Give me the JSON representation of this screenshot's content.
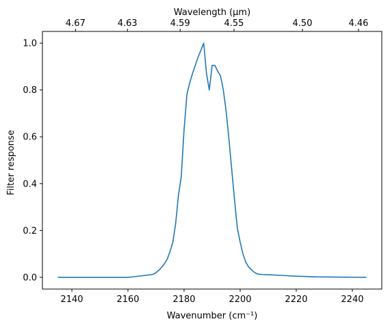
{
  "chart_data": {
    "type": "line",
    "xlabel": "Wavenumber (cm⁻¹)",
    "ylabel": "Filter response",
    "top_xlabel": "Wavelength (μm)",
    "xlim": [
      2129.5,
      2250.5
    ],
    "ylim": [
      -0.05,
      1.05
    ],
    "x_ticks": [
      2140,
      2160,
      2180,
      2200,
      2220,
      2240
    ],
    "y_ticks": [
      0.0,
      0.2,
      0.4,
      0.6,
      0.8,
      1.0
    ],
    "y_tick_labels": [
      "0.0",
      "0.2",
      "0.4",
      "0.6",
      "0.8",
      "1.0"
    ],
    "top_ticks": [
      {
        "label": "4.67",
        "x": 2141.3
      },
      {
        "label": "4.63",
        "x": 2159.8
      },
      {
        "label": "4.59",
        "x": 2178.6
      },
      {
        "label": "4.55",
        "x": 2197.8
      },
      {
        "label": "4.50",
        "x": 2222.2
      },
      {
        "label": "4.46",
        "x": 2242.2
      }
    ],
    "line_color": "#1f77b4",
    "series": [
      {
        "x": [
          2135,
          2150,
          2160,
          2163,
          2166,
          2169,
          2170,
          2171,
          2172,
          2173,
          2174,
          2175,
          2176,
          2177,
          2178,
          2179,
          2180,
          2181,
          2182,
          2183,
          2184,
          2185,
          2186,
          2187,
          2188,
          2189,
          2190,
          2190.5,
          2191,
          2192,
          2193,
          2194,
          2195,
          2196,
          2197,
          2198,
          2199,
          2200,
          2201,
          2202,
          2203,
          2204,
          2205,
          2206,
          2207,
          2208,
          2210,
          2212,
          2215,
          2220,
          2227,
          2235,
          2245
        ],
        "y": [
          0.0,
          0.0,
          0.0,
          0.004,
          0.008,
          0.013,
          0.02,
          0.03,
          0.043,
          0.058,
          0.078,
          0.11,
          0.15,
          0.23,
          0.35,
          0.43,
          0.63,
          0.78,
          0.83,
          0.87,
          0.905,
          0.94,
          0.97,
          1.0,
          0.87,
          0.8,
          0.905,
          0.905,
          0.905,
          0.88,
          0.86,
          0.8,
          0.71,
          0.59,
          0.46,
          0.33,
          0.21,
          0.15,
          0.1,
          0.065,
          0.045,
          0.032,
          0.022,
          0.015,
          0.013,
          0.012,
          0.011,
          0.01,
          0.008,
          0.005,
          0.002,
          0.001,
          0.0
        ]
      }
    ]
  }
}
